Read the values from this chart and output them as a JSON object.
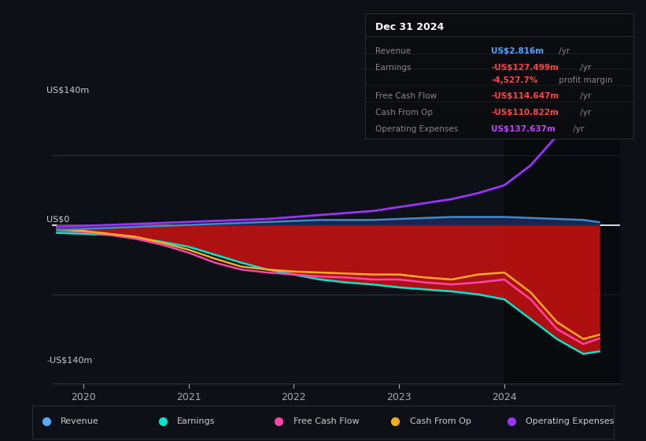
{
  "background_color": "#0d1117",
  "plot_bg_color": "#0d1117",
  "ylabel_top": "US$140m",
  "ylabel_zero": "US$0",
  "ylabel_bottom": "-US$140m",
  "ylim": [
    -160,
    160
  ],
  "xlim": [
    2019.7,
    2025.1
  ],
  "xticks": [
    2020,
    2021,
    2022,
    2023,
    2024
  ],
  "grid_color": "#2a3040",
  "zero_line_color": "#ffffff",
  "info_box": {
    "title": "Dec 31 2024",
    "title_color": "#ffffff",
    "rows": [
      {
        "label": "Revenue",
        "value": "US$2.816m",
        "value_color": "#4da6ff",
        "suffix": " /yr"
      },
      {
        "label": "Earnings",
        "value": "-US$127.499m",
        "value_color": "#ff4444",
        "suffix": " /yr"
      },
      {
        "label": "",
        "value": "-4,527.7%",
        "value_color": "#ff4444",
        "suffix": " profit margin"
      },
      {
        "label": "Free Cash Flow",
        "value": "-US$114.647m",
        "value_color": "#ff4444",
        "suffix": " /yr"
      },
      {
        "label": "Cash From Op",
        "value": "-US$110.822m",
        "value_color": "#ff4444",
        "suffix": " /yr"
      },
      {
        "label": "Operating Expenses",
        "value": "US$137.637m",
        "value_color": "#bb44ff",
        "suffix": " /yr"
      }
    ]
  },
  "series": {
    "revenue": {
      "color": "#4488cc",
      "label": "Revenue",
      "legend_color": "#55aaff",
      "x": [
        2019.75,
        2020.0,
        2020.25,
        2020.5,
        2020.75,
        2021.0,
        2021.25,
        2021.5,
        2021.75,
        2022.0,
        2022.25,
        2022.5,
        2022.75,
        2023.0,
        2023.25,
        2023.5,
        2023.75,
        2024.0,
        2024.25,
        2024.5,
        2024.75,
        2024.9
      ],
      "y": [
        -5,
        -4,
        -3,
        -2,
        -1,
        0,
        1,
        2,
        3,
        4,
        5,
        5,
        5,
        6,
        7,
        8,
        8,
        8,
        7,
        6,
        5,
        2.8
      ]
    },
    "earnings": {
      "color": "#00e5cc",
      "label": "Earnings",
      "legend_color": "#00e5cc",
      "x": [
        2019.75,
        2020.0,
        2020.25,
        2020.5,
        2020.75,
        2021.0,
        2021.25,
        2021.5,
        2021.75,
        2022.0,
        2022.25,
        2022.5,
        2022.75,
        2023.0,
        2023.25,
        2023.5,
        2023.75,
        2024.0,
        2024.25,
        2024.5,
        2024.75,
        2024.9
      ],
      "y": [
        -8,
        -9,
        -10,
        -13,
        -17,
        -22,
        -30,
        -38,
        -45,
        -50,
        -55,
        -58,
        -60,
        -63,
        -65,
        -67,
        -70,
        -75,
        -95,
        -115,
        -130,
        -127.5
      ]
    },
    "fcf": {
      "color": "#ff44aa",
      "label": "Free Cash Flow",
      "legend_color": "#ff44aa",
      "x": [
        2019.75,
        2020.0,
        2020.25,
        2020.5,
        2020.75,
        2021.0,
        2021.25,
        2021.5,
        2021.75,
        2022.0,
        2022.25,
        2022.5,
        2022.75,
        2023.0,
        2023.25,
        2023.5,
        2023.75,
        2024.0,
        2024.25,
        2024.5,
        2024.75,
        2024.9
      ],
      "y": [
        -5,
        -7,
        -10,
        -14,
        -20,
        -28,
        -38,
        -45,
        -48,
        -50,
        -52,
        -53,
        -55,
        -55,
        -58,
        -60,
        -58,
        -55,
        -75,
        -105,
        -120,
        -114.6
      ]
    },
    "cashfromop": {
      "color": "#ffaa22",
      "label": "Cash From Op",
      "legend_color": "#ffaa22",
      "x": [
        2019.75,
        2020.0,
        2020.25,
        2020.5,
        2020.75,
        2021.0,
        2021.25,
        2021.5,
        2021.75,
        2022.0,
        2022.25,
        2022.5,
        2022.75,
        2023.0,
        2023.25,
        2023.5,
        2023.75,
        2024.0,
        2024.25,
        2024.5,
        2024.75,
        2024.9
      ],
      "y": [
        -5,
        -6,
        -9,
        -12,
        -18,
        -25,
        -34,
        -42,
        -45,
        -47,
        -48,
        -49,
        -50,
        -50,
        -53,
        -55,
        -50,
        -48,
        -68,
        -98,
        -115,
        -110.8
      ]
    },
    "opex": {
      "color": "#9933ff",
      "label": "Operating Expenses",
      "legend_color": "#9933ff",
      "x": [
        2019.75,
        2020.0,
        2020.25,
        2020.5,
        2020.75,
        2021.0,
        2021.25,
        2021.5,
        2021.75,
        2022.0,
        2022.25,
        2022.5,
        2022.75,
        2023.0,
        2023.25,
        2023.5,
        2023.75,
        2024.0,
        2024.25,
        2024.5,
        2024.75,
        2024.9
      ],
      "y": [
        -2,
        -1,
        0,
        1,
        2,
        3,
        4,
        5,
        6,
        8,
        10,
        12,
        14,
        18,
        22,
        26,
        32,
        40,
        60,
        90,
        125,
        137.6
      ]
    }
  },
  "highlight_x_start": 2024.0,
  "legend_items": [
    {
      "label": "Revenue",
      "color": "#55aaff"
    },
    {
      "label": "Earnings",
      "color": "#00e5cc"
    },
    {
      "label": "Free Cash Flow",
      "color": "#ff44aa"
    },
    {
      "label": "Cash From Op",
      "color": "#ffaa22"
    },
    {
      "label": "Operating Expenses",
      "color": "#9933ff"
    }
  ]
}
